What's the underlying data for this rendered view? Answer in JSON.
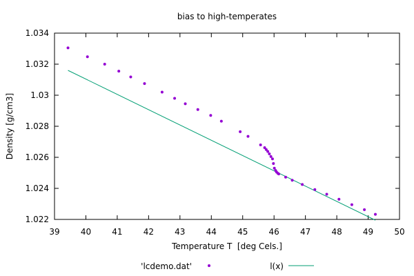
{
  "chart_data": {
    "type": "scatter",
    "title": "bias to high-temperates",
    "xlabel": "Temperature T  [deg Cels.]",
    "ylabel": "Density [g/cm3]",
    "xlim": [
      39,
      50
    ],
    "ylim": [
      1.022,
      1.034
    ],
    "xticks": [
      39,
      40,
      41,
      42,
      43,
      44,
      45,
      46,
      47,
      48,
      49,
      50
    ],
    "yticks": [
      1.022,
      1.024,
      1.026,
      1.028,
      1.03,
      1.032,
      1.034
    ],
    "ytick_labels": [
      "1.022",
      "1.024",
      "1.026",
      "1.028",
      "1.03",
      "1.032",
      "1.034"
    ],
    "grid": false,
    "legend_position": "bottom",
    "colors": {
      "points": "#9400d3",
      "line": "#009e73",
      "axes": "#000000"
    },
    "series": [
      {
        "name": "'lcdemo.dat'",
        "kind": "points",
        "x": [
          39.43,
          40.05,
          40.6,
          41.05,
          41.43,
          41.87,
          42.43,
          42.83,
          43.17,
          43.57,
          43.98,
          44.32,
          44.92,
          45.17,
          45.57,
          45.7,
          45.75,
          45.8,
          45.85,
          45.9,
          45.95,
          45.98,
          46.01,
          46.05,
          46.08,
          46.12,
          46.15,
          46.37,
          46.58,
          46.9,
          47.3,
          47.68,
          48.07,
          48.48,
          48.88,
          49.23
        ],
        "y": [
          1.03305,
          1.03248,
          1.032,
          1.03155,
          1.03118,
          1.03075,
          1.0302,
          1.0298,
          1.02945,
          1.02908,
          1.0287,
          1.02833,
          1.02765,
          1.02735,
          1.0268,
          1.02662,
          1.0265,
          1.02638,
          1.02622,
          1.02605,
          1.0259,
          1.0256,
          1.0253,
          1.02515,
          1.02505,
          1.02497,
          1.02493,
          1.02472,
          1.02452,
          1.02425,
          1.02392,
          1.02362,
          1.0233,
          1.02295,
          1.02263,
          1.02233
        ]
      },
      {
        "name": "l(x)",
        "kind": "line",
        "x": [
          39.43,
          49.23
        ],
        "y": [
          1.0316,
          1.02195
        ]
      }
    ]
  }
}
